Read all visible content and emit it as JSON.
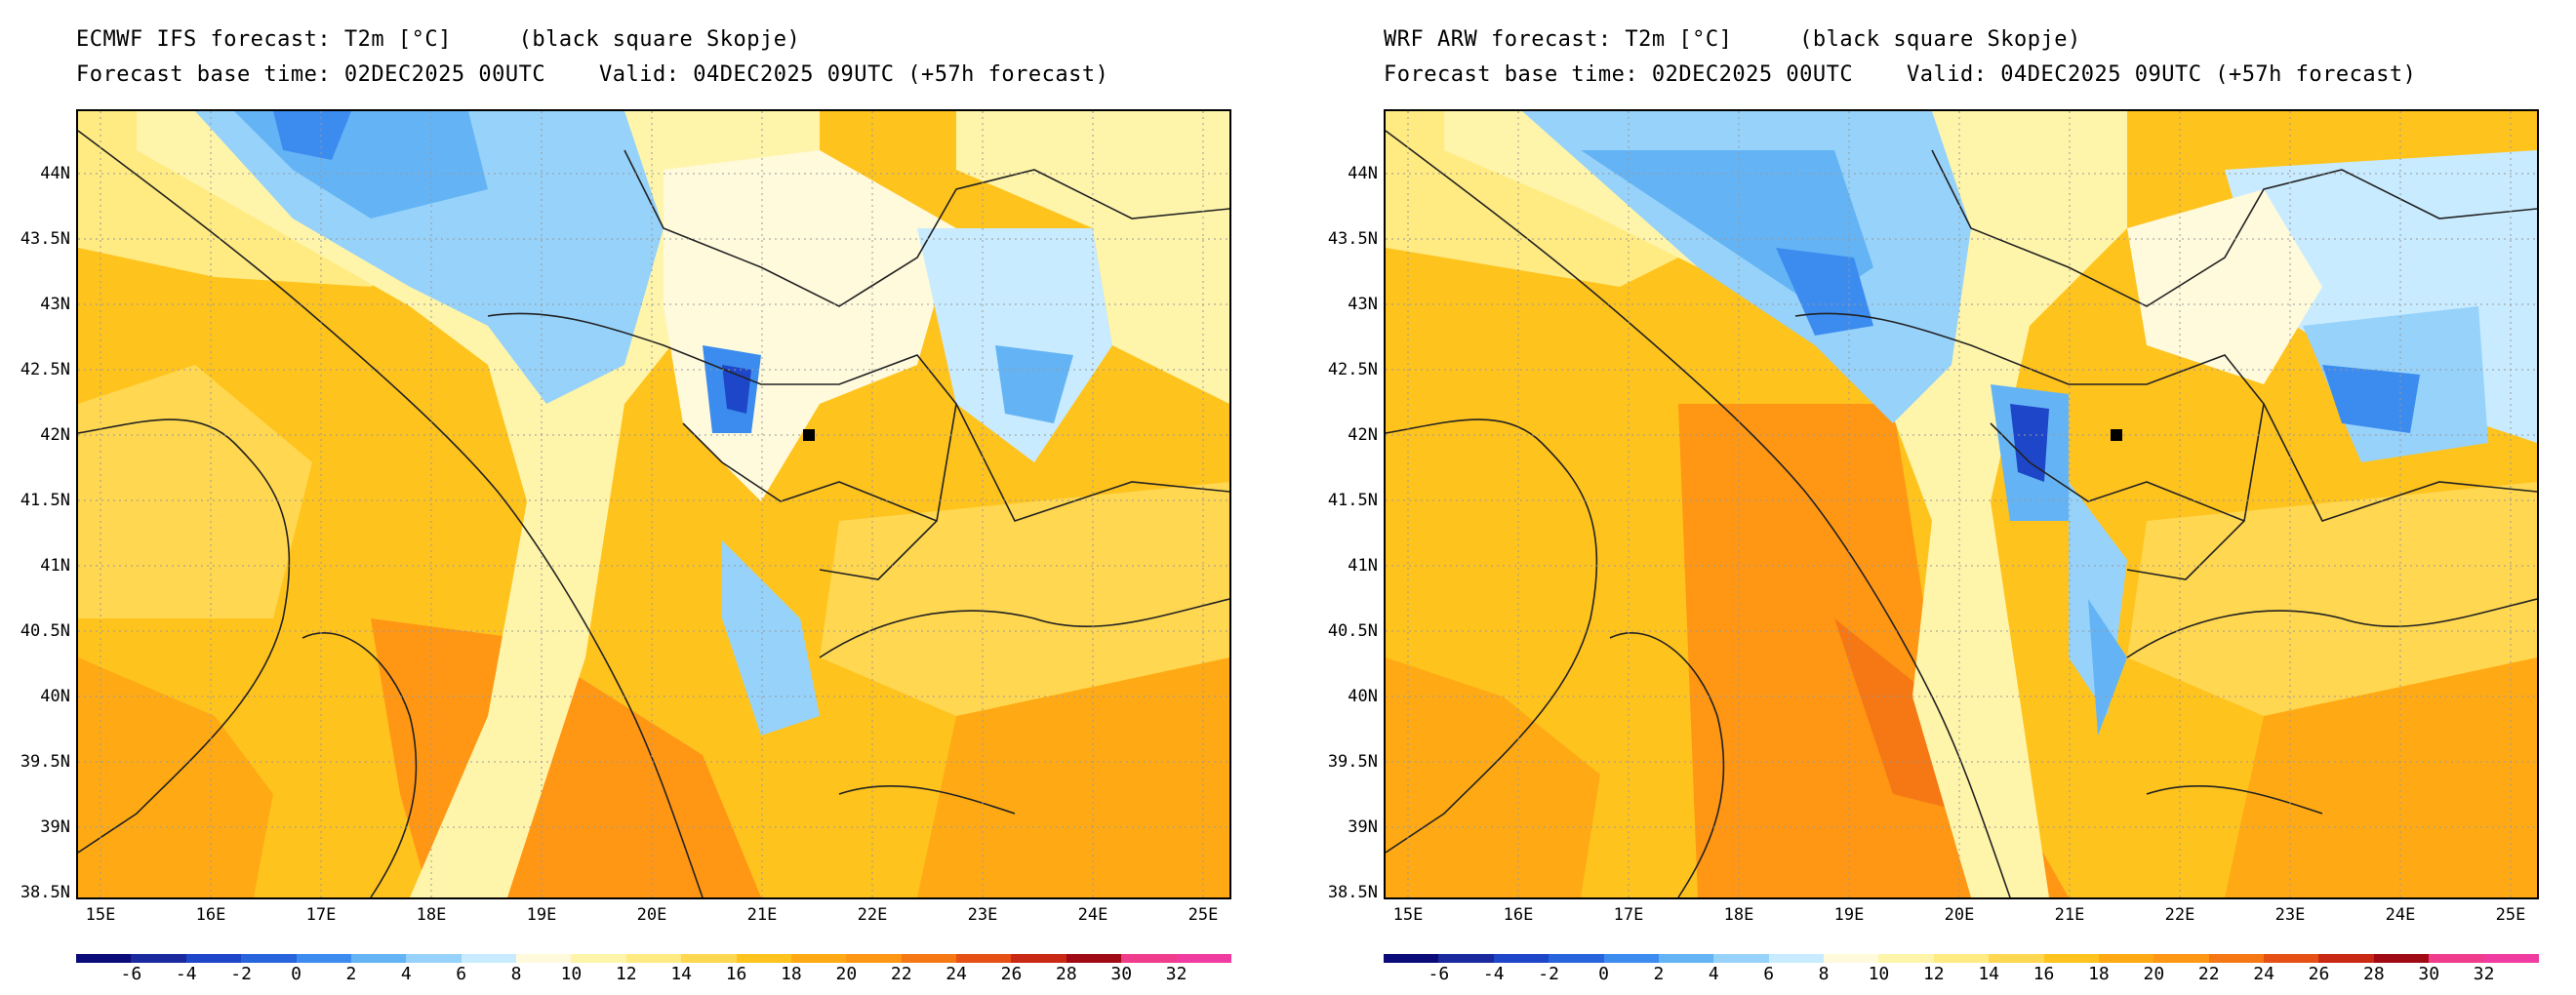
{
  "panels": [
    {
      "title_line1": "ECMWF IFS forecast: T2m [°C]     (black square Skopje)",
      "title_line2": "Forecast base time: 02DEC2025 00UTC    Valid: 04DEC2025 09UTC (+57h forecast)"
    },
    {
      "title_line1": "WRF ARW forecast: T2m [°C]     (black square Skopje)",
      "title_line2": "Forecast base time: 02DEC2025 00UTC    Valid: 04DEC2025 09UTC (+57h forecast)"
    }
  ],
  "lat_labels": [
    "44N",
    "43.5N",
    "43N",
    "42.5N",
    "42N",
    "41.5N",
    "41N",
    "40.5N",
    "40N",
    "39.5N",
    "39N",
    "38.5N"
  ],
  "lon_labels": [
    "15E",
    "16E",
    "17E",
    "18E",
    "19E",
    "20E",
    "21E",
    "22E",
    "23E",
    "24E",
    "25E"
  ],
  "colorbar": {
    "labels": [
      "-6",
      "-4",
      "-2",
      "0",
      "2",
      "4",
      "6",
      "8",
      "10",
      "12",
      "14",
      "16",
      "18",
      "20",
      "22",
      "24",
      "26",
      "28",
      "30",
      "32"
    ],
    "colors": [
      "#0a0a78",
      "#1a2a9e",
      "#1e46c8",
      "#2864dc",
      "#3c8cf0",
      "#64b4f5",
      "#96d2fa",
      "#c8ebff",
      "#fffadc",
      "#fff5aa",
      "#ffeb82",
      "#ffd750",
      "#ffc31e",
      "#ffaa14",
      "#ff9614",
      "#f57814",
      "#e65014",
      "#c82814",
      "#a00a14",
      "#f03c8c",
      "#f03ca0"
    ]
  },
  "marker": "Skopje"
}
